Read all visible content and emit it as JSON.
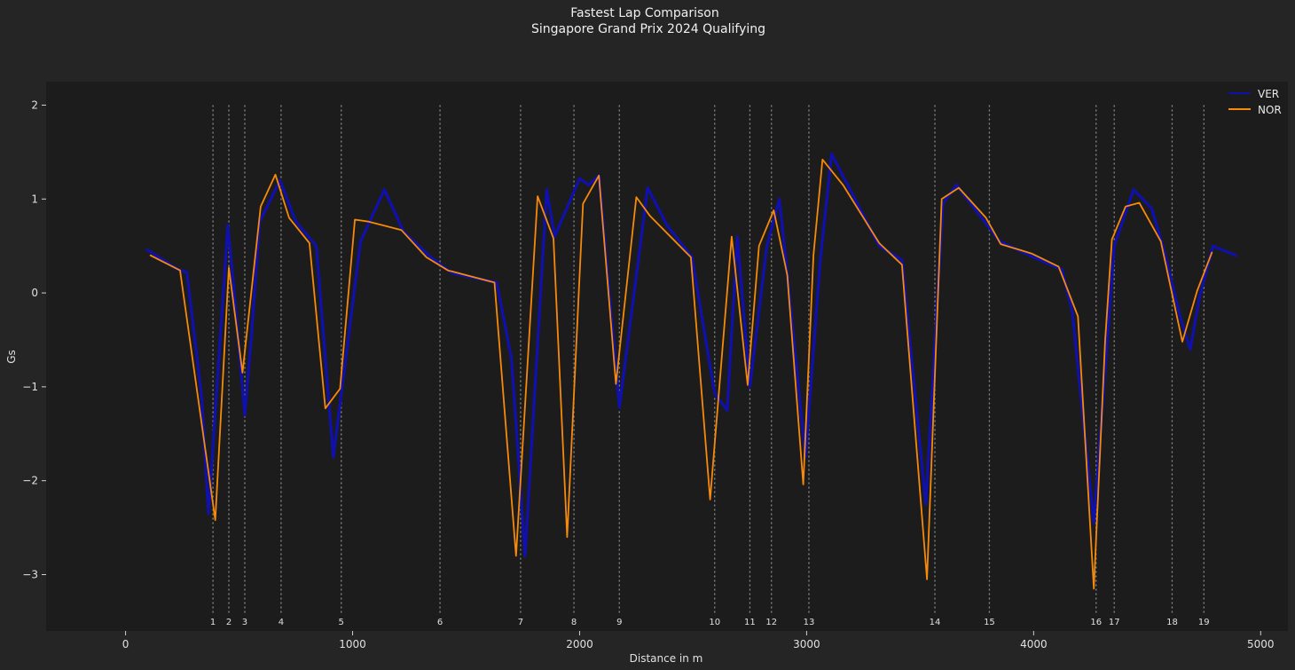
{
  "chart_data": {
    "type": "line",
    "title": "Fastest Lap Comparison",
    "subtitle": "Singapore Grand Prix 2024 Qualifying",
    "xlabel": "Distance in m",
    "ylabel": "Gs",
    "xlim": [
      -350,
      5120
    ],
    "ylim": [
      -3.6,
      2.25
    ],
    "xticks": [
      0,
      1000,
      2000,
      3000,
      4000,
      5000
    ],
    "yticks": [
      -3,
      -2,
      -1,
      0,
      1,
      2
    ],
    "grid": false,
    "legend_position": "top-right",
    "corners": [
      {
        "label": "1",
        "distance": 385
      },
      {
        "label": "2",
        "distance": 455
      },
      {
        "label": "3",
        "distance": 525
      },
      {
        "label": "4",
        "distance": 685
      },
      {
        "label": "5",
        "distance": 950
      },
      {
        "label": "6",
        "distance": 1385
      },
      {
        "label": "7",
        "distance": 1740
      },
      {
        "label": "8",
        "distance": 1975
      },
      {
        "label": "9",
        "distance": 2175
      },
      {
        "label": "10",
        "distance": 2595
      },
      {
        "label": "11",
        "distance": 2750
      },
      {
        "label": "12",
        "distance": 2845
      },
      {
        "label": "13",
        "distance": 3010
      },
      {
        "label": "14",
        "distance": 3565
      },
      {
        "label": "15",
        "distance": 3805
      },
      {
        "label": "16",
        "distance": 4275
      },
      {
        "label": "17",
        "distance": 4355
      },
      {
        "label": "18",
        "distance": 4610
      },
      {
        "label": "19",
        "distance": 4750
      }
    ],
    "series": [
      {
        "name": "VER",
        "color": "#1010ad",
        "x": [
          95,
          230,
          270,
          335,
          365,
          450,
          475,
          525,
          555,
          590,
          680,
          750,
          840,
          915,
          1035,
          1140,
          1225,
          1345,
          1440,
          1635,
          1700,
          1760,
          1855,
          1890,
          2000,
          2040,
          2085,
          2175,
          2300,
          2385,
          2495,
          2595,
          2650,
          2695,
          2750,
          2825,
          2880,
          2915,
          2995,
          3060,
          3110,
          3320,
          3420,
          3525,
          3600,
          3660,
          3850,
          4000,
          4125,
          4170,
          4265,
          4355,
          4440,
          4520,
          4575,
          4645,
          4690,
          4730,
          4790,
          4890
        ],
        "y": [
          0.46,
          0.25,
          0.22,
          -1.1,
          -2.35,
          0.72,
          0.1,
          -1.3,
          -0.45,
          0.75,
          1.2,
          0.76,
          0.5,
          -1.75,
          0.55,
          1.1,
          0.65,
          0.38,
          0.21,
          0.11,
          -0.7,
          -2.8,
          1.1,
          0.6,
          1.22,
          1.15,
          1.25,
          -1.22,
          1.12,
          0.72,
          0.38,
          -1.07,
          -1.25,
          0.6,
          -1.0,
          0.5,
          1.0,
          0.2,
          -1.75,
          0.35,
          1.48,
          0.5,
          0.35,
          -2.25,
          0.95,
          1.15,
          0.55,
          0.38,
          0.25,
          -0.2,
          -2.45,
          0.5,
          1.1,
          0.9,
          0.45,
          -0.25,
          -0.6,
          -0.05,
          0.5,
          0.4
        ]
      },
      {
        "name": "NOR",
        "color": "#f58a0b",
        "x": [
          110,
          240,
          395,
          455,
          515,
          595,
          660,
          720,
          810,
          880,
          945,
          1010,
          1070,
          1215,
          1325,
          1420,
          1625,
          1720,
          1815,
          1885,
          1945,
          2015,
          2085,
          2160,
          2250,
          2310,
          2490,
          2575,
          2670,
          2740,
          2790,
          2855,
          2915,
          2985,
          3030,
          3070,
          3160,
          3320,
          3420,
          3530,
          3595,
          3670,
          3790,
          3855,
          3990,
          4110,
          4195,
          4265,
          4315,
          4345,
          4405,
          4465,
          4560,
          4655,
          4720,
          4785
        ],
        "y": [
          0.4,
          0.24,
          -2.42,
          0.27,
          -0.85,
          0.92,
          1.26,
          0.8,
          0.53,
          -1.23,
          -1.02,
          0.78,
          0.76,
          0.67,
          0.38,
          0.24,
          0.11,
          -2.8,
          1.03,
          0.58,
          -2.6,
          0.95,
          1.25,
          -0.97,
          1.02,
          0.82,
          0.38,
          -2.2,
          0.6,
          -0.98,
          0.5,
          0.88,
          0.19,
          -2.04,
          0.4,
          1.42,
          1.15,
          0.53,
          0.3,
          -3.05,
          1.0,
          1.12,
          0.8,
          0.52,
          0.42,
          0.28,
          -0.25,
          -3.15,
          -0.5,
          0.57,
          0.92,
          0.96,
          0.55,
          -0.52,
          0.02,
          0.43
        ]
      }
    ]
  }
}
